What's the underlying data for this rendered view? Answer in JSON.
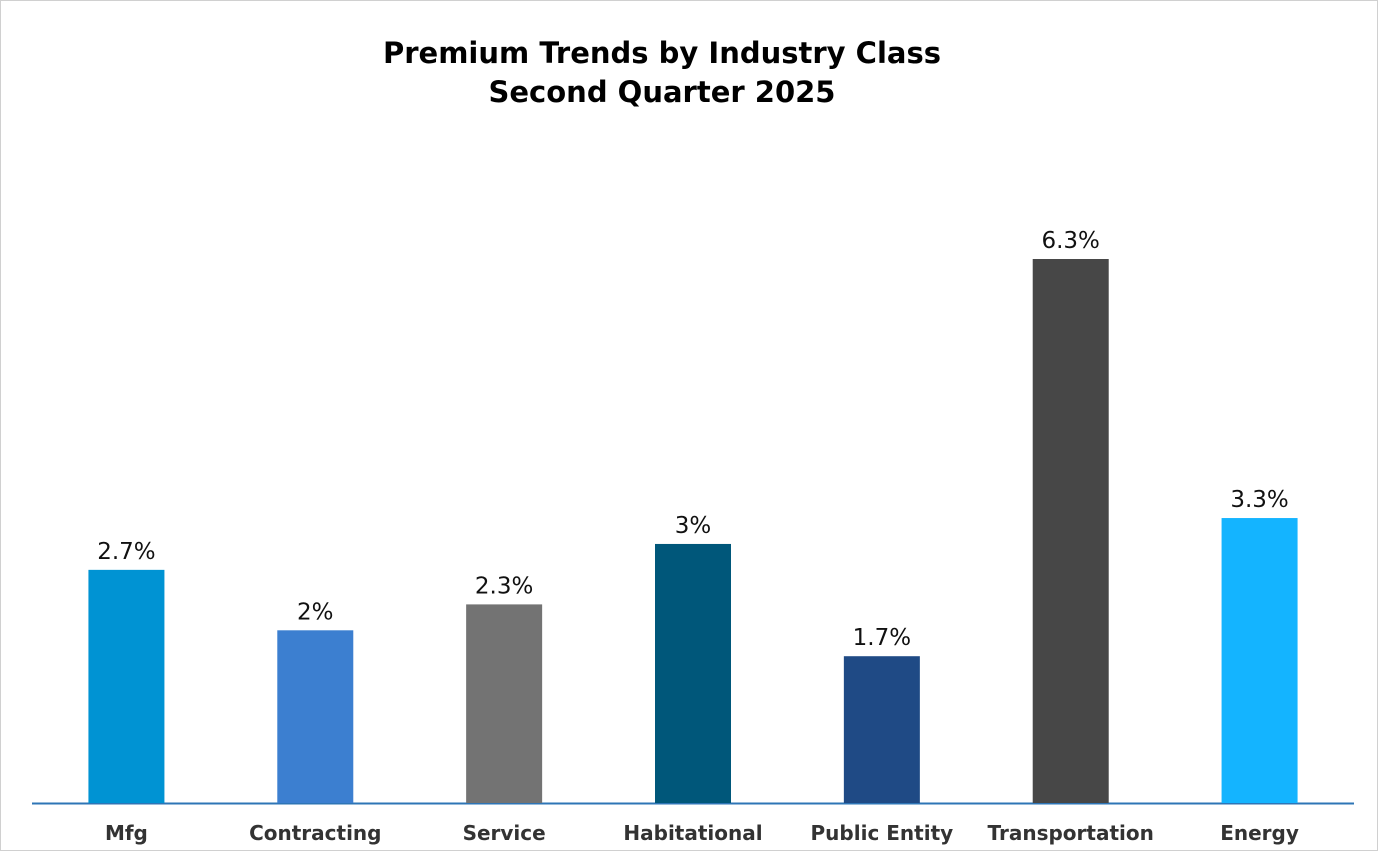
{
  "chart_data": {
    "type": "bar",
    "title": "Premium Trends by Industry Class",
    "subtitle": "Second Quarter 2025",
    "xlabel": "",
    "ylabel": "",
    "categories": [
      "Mfg",
      "Contracting",
      "Service",
      "Habitational",
      "Public Entity",
      "Transportation",
      "Energy"
    ],
    "values": [
      2.7,
      2,
      2.3,
      3,
      1.7,
      6.3,
      3.3
    ],
    "value_labels": [
      "2.7%",
      "2%",
      "2.3%",
      "3%",
      "1.7%",
      "6.3%",
      "3.3%"
    ],
    "colors": [
      "#0093d3",
      "#3c7fd0",
      "#737373",
      "#00577a",
      "#1f4a85",
      "#474747",
      "#14b4ff"
    ],
    "ylim": [
      0,
      6.3
    ],
    "grid": false,
    "legend": "none",
    "axis_color": "#2e75b6"
  }
}
